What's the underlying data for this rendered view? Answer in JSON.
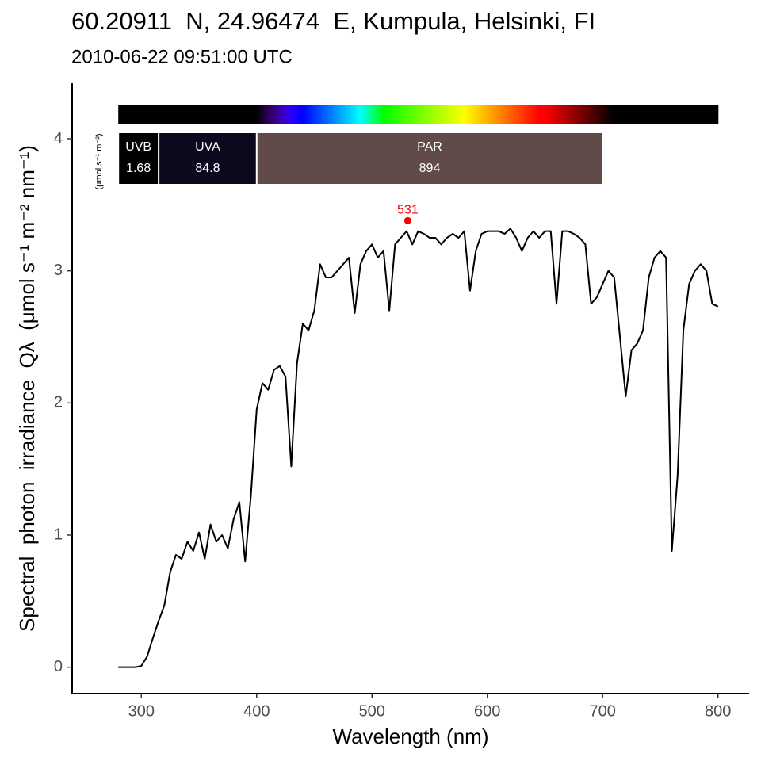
{
  "chart_data": {
    "type": "line",
    "title": "60.20911  N, 24.96474  E, Kumpula, Helsinki, FI",
    "subtitle": "2010-06-22 09:51:00 UTC",
    "x_label": "Wavelength (nm)",
    "y_label": "Spectral  photon  irradiance  Qλ  (μmol s⁻¹ m⁻² nm⁻¹)",
    "x": [
      280,
      285,
      290,
      295,
      300,
      305,
      310,
      315,
      320,
      325,
      330,
      335,
      340,
      345,
      350,
      355,
      360,
      365,
      370,
      375,
      380,
      385,
      390,
      395,
      400,
      405,
      410,
      415,
      420,
      425,
      430,
      435,
      440,
      445,
      450,
      455,
      460,
      465,
      470,
      475,
      480,
      485,
      490,
      495,
      500,
      505,
      510,
      515,
      520,
      525,
      530,
      535,
      540,
      545,
      550,
      555,
      560,
      565,
      570,
      575,
      580,
      585,
      590,
      595,
      600,
      605,
      610,
      615,
      620,
      625,
      630,
      635,
      640,
      645,
      650,
      655,
      660,
      665,
      670,
      675,
      680,
      685,
      690,
      695,
      700,
      705,
      710,
      715,
      720,
      725,
      730,
      735,
      740,
      745,
      750,
      755,
      760,
      765,
      770,
      775,
      780,
      785,
      790,
      795,
      800
    ],
    "series": [
      {
        "color": "#000000",
        "values": [
          0,
          0,
          0,
          0,
          0.01,
          0.08,
          0.22,
          0.35,
          0.47,
          0.72,
          0.85,
          0.82,
          0.95,
          0.88,
          1.02,
          0.82,
          1.08,
          0.95,
          1.0,
          0.9,
          1.12,
          1.25,
          0.8,
          1.3,
          1.95,
          2.15,
          2.1,
          2.25,
          2.28,
          2.2,
          1.52,
          2.3,
          2.6,
          2.55,
          2.7,
          3.05,
          2.95,
          2.95,
          3.0,
          3.05,
          3.1,
          2.68,
          3.05,
          3.15,
          3.2,
          3.1,
          3.15,
          2.7,
          3.2,
          3.25,
          3.3,
          3.2,
          3.3,
          3.28,
          3.25,
          3.25,
          3.2,
          3.25,
          3.28,
          3.25,
          3.3,
          2.85,
          3.15,
          3.28,
          3.3,
          3.3,
          3.3,
          3.28,
          3.32,
          3.25,
          3.15,
          3.25,
          3.3,
          3.25,
          3.3,
          3.3,
          2.75,
          3.3,
          3.3,
          3.28,
          3.25,
          3.2,
          2.75,
          2.8,
          2.9,
          3.0,
          2.95,
          2.5,
          2.05,
          2.4,
          2.45,
          2.55,
          2.95,
          3.1,
          3.15,
          3.1,
          0.88,
          1.45,
          2.55,
          2.9,
          3.0,
          3.05,
          3.0,
          2.75,
          2.73
        ]
      }
    ],
    "xlim": [
      240,
      827
    ],
    "ylim": [
      -0.2,
      4.42
    ],
    "xticks": [
      300,
      400,
      500,
      600,
      700,
      800
    ],
    "yticks": [
      0,
      1,
      2,
      3,
      4
    ],
    "grid": false,
    "peak_wavelength": 531,
    "peak_value": 3.38,
    "peak_color": "#ff0000",
    "band_unit": "(μmol s⁻¹ m⁻²)",
    "bands": [
      {
        "name": "UVB",
        "range": [
          280,
          315
        ],
        "value": 1.68,
        "color": "#000000"
      },
      {
        "name": "UVA",
        "range": [
          315,
          400
        ],
        "value": 84.8,
        "color": "#0a0a1c"
      },
      {
        "name": "PAR",
        "range": [
          400,
          700
        ],
        "value": 894,
        "color": "#614b48"
      }
    ]
  }
}
